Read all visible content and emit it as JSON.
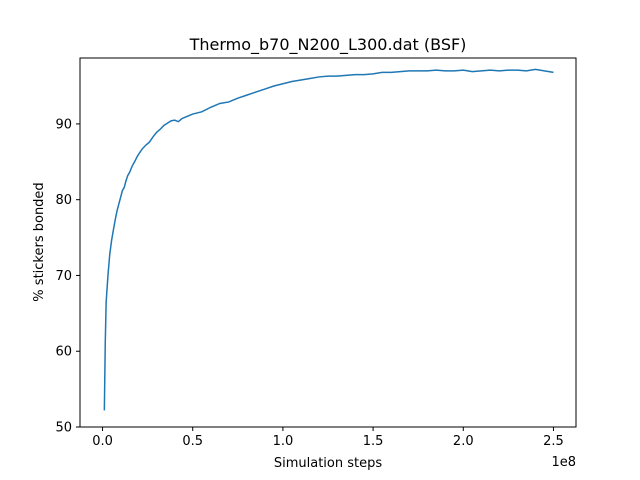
{
  "chart_data": {
    "type": "line",
    "title": "Thermo_b70_N200_L300.dat  (BSF)",
    "xlabel": "Simulation steps",
    "ylabel": "% stickers bonded",
    "x_offset_label": "1e8",
    "x_scale": 100000000,
    "xlim": [
      -0.125,
      2.625
    ],
    "ylim": [
      50,
      98.7
    ],
    "xticks": [
      0.0,
      0.5,
      1.0,
      1.5,
      2.0,
      2.5
    ],
    "xtick_labels": [
      "0.0",
      "0.5",
      "1.0",
      "1.5",
      "2.0",
      "2.5"
    ],
    "yticks": [
      50,
      60,
      70,
      80,
      90
    ],
    "ytick_labels": [
      "50",
      "60",
      "70",
      "80",
      "90"
    ],
    "grid": false,
    "line_color": "#1f77b4",
    "series": [
      {
        "x": [
          0.01,
          0.015,
          0.02,
          0.03,
          0.04,
          0.05,
          0.06,
          0.07,
          0.08,
          0.09,
          0.1,
          0.11,
          0.12,
          0.13,
          0.14,
          0.15,
          0.16,
          0.17,
          0.18,
          0.19,
          0.2,
          0.22,
          0.24,
          0.26,
          0.28,
          0.3,
          0.32,
          0.34,
          0.36,
          0.38,
          0.4,
          0.42,
          0.44,
          0.46,
          0.48,
          0.5,
          0.55,
          0.6,
          0.65,
          0.7,
          0.75,
          0.8,
          0.85,
          0.9,
          0.95,
          1.0,
          1.05,
          1.1,
          1.15,
          1.2,
          1.25,
          1.3,
          1.35,
          1.4,
          1.45,
          1.5,
          1.55,
          1.6,
          1.65,
          1.7,
          1.75,
          1.8,
          1.85,
          1.9,
          1.95,
          2.0,
          2.05,
          2.1,
          2.15,
          2.2,
          2.25,
          2.3,
          2.35,
          2.4,
          2.45,
          2.5
        ],
        "y": [
          52.2,
          61.0,
          66.5,
          70.0,
          72.8,
          74.6,
          76.0,
          77.3,
          78.5,
          79.4,
          80.3,
          81.2,
          81.6,
          82.5,
          83.2,
          83.6,
          84.2,
          84.7,
          85.1,
          85.6,
          86.0,
          86.7,
          87.2,
          87.6,
          88.3,
          88.9,
          89.3,
          89.8,
          90.1,
          90.4,
          90.5,
          90.3,
          90.7,
          90.9,
          91.1,
          91.3,
          91.6,
          92.2,
          92.7,
          92.9,
          93.4,
          93.8,
          94.2,
          94.6,
          95.0,
          95.3,
          95.6,
          95.8,
          96.0,
          96.2,
          96.3,
          96.3,
          96.4,
          96.5,
          96.5,
          96.6,
          96.8,
          96.8,
          96.9,
          97.0,
          97.0,
          97.0,
          97.1,
          97.0,
          97.0,
          97.1,
          96.9,
          97.0,
          97.1,
          97.0,
          97.1,
          97.1,
          97.0,
          97.2,
          97.0,
          96.8
        ]
      }
    ]
  }
}
